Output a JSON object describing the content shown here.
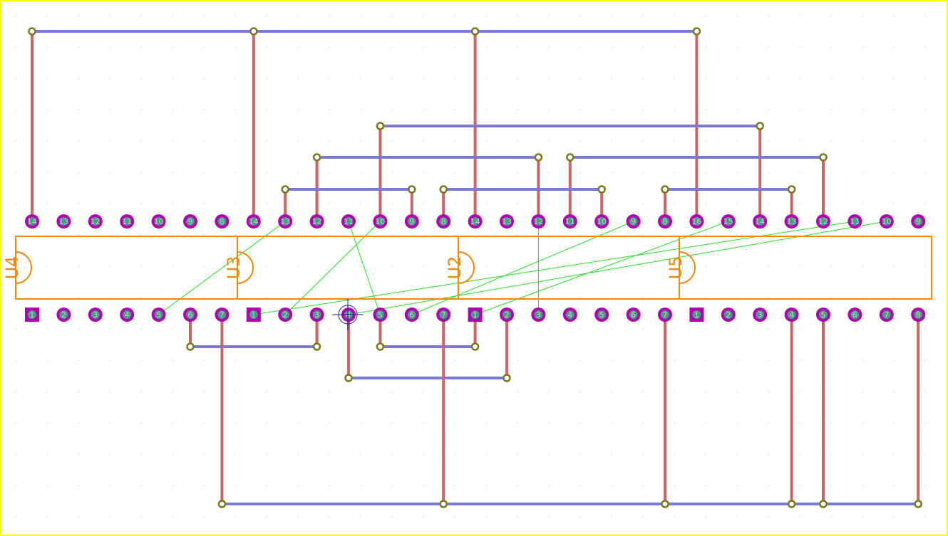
{
  "colors": {
    "border": "#ffff00",
    "grid": "#d6d6d6",
    "package": "#f0880a",
    "pad": "#b000b0",
    "pad_ring": "#7cc84a",
    "trace_vertical": "#cc6666",
    "trace_horizontal": "#7a7ad6",
    "via": "#7a7a1a",
    "ratsnest": "#22dd22",
    "crosshair": "#1a1aa0"
  },
  "packages": [
    {
      "ref": "U4",
      "bottom_pins": [
        "1",
        "2",
        "3",
        "4",
        "5",
        "6",
        "7"
      ],
      "top_pins": [
        "14",
        "13",
        "12",
        "11",
        "10",
        "9",
        "8"
      ]
    },
    {
      "ref": "U3",
      "bottom_pins": [
        "1",
        "2",
        "3",
        "4",
        "5",
        "6",
        "7"
      ],
      "top_pins": [
        "14",
        "13",
        "12",
        "11",
        "10",
        "9",
        "8"
      ]
    },
    {
      "ref": "U2",
      "bottom_pins": [
        "1",
        "2",
        "3",
        "4",
        "5",
        "6",
        "7"
      ],
      "top_pins": [
        "14",
        "13",
        "12",
        "11",
        "10",
        "9",
        "8"
      ]
    },
    {
      "ref": "U5",
      "bottom_pins": [
        "1",
        "2",
        "3",
        "4",
        "5",
        "6",
        "7",
        "8"
      ],
      "top_pins": [
        "16",
        "15",
        "14",
        "13",
        "12",
        "11",
        "10",
        "9"
      ]
    }
  ]
}
